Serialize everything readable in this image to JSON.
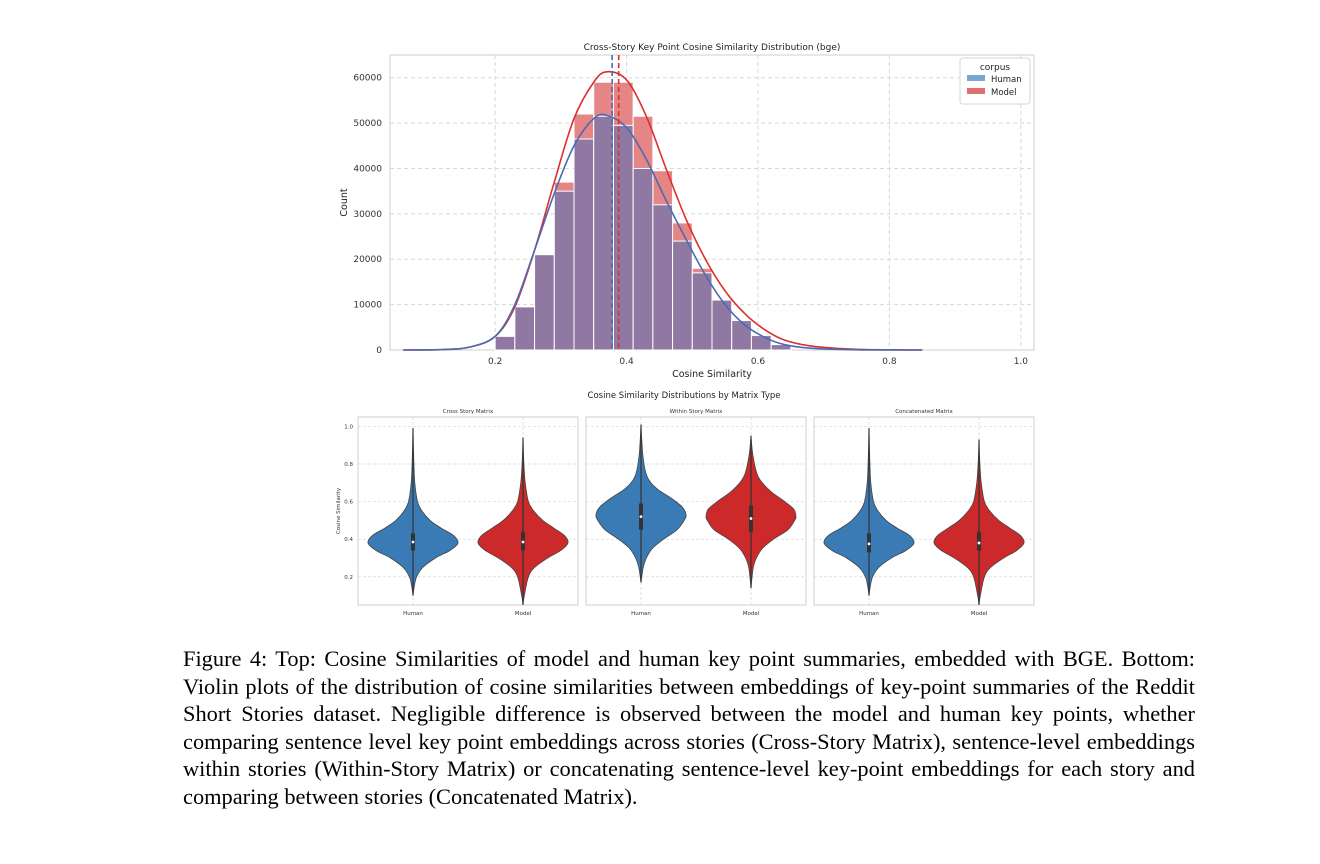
{
  "chart_data": [
    {
      "type": "histogram",
      "title": "Cross-Story Key Point Cosine Similarity Distribution (bge)",
      "xlabel": "Cosine Similarity",
      "ylabel": "Count",
      "xlim": [
        0.04,
        1.02
      ],
      "ylim": [
        0,
        65000
      ],
      "xticks": [
        "0.2",
        "0.4",
        "0.6",
        "0.8",
        "1.0"
      ],
      "xtick_values": [
        0.2,
        0.4,
        0.6,
        0.8,
        1.0
      ],
      "yticks": [
        "0",
        "10000",
        "20000",
        "30000",
        "40000",
        "50000",
        "60000"
      ],
      "ytick_values": [
        0,
        10000,
        20000,
        30000,
        40000,
        50000,
        60000
      ],
      "grid": true,
      "legend": {
        "title": "corpus",
        "position": "top-right",
        "entries": [
          "Human",
          "Model"
        ]
      },
      "bin_edges": [
        0.2,
        0.23,
        0.26,
        0.29,
        0.32,
        0.35,
        0.38,
        0.41,
        0.44,
        0.47,
        0.5,
        0.53,
        0.56,
        0.59,
        0.62,
        0.65
      ],
      "series": [
        {
          "name": "Human",
          "color": "#8a78a4",
          "kde_color": "#4b6bb0",
          "mean": 0.378,
          "values": [
            3000,
            9500,
            21000,
            35000,
            46500,
            51500,
            49500,
            40000,
            32000,
            24000,
            17000,
            11000,
            6500,
            3200,
            1200
          ],
          "kde": [
            [
              0.06,
              0
            ],
            [
              0.12,
              100
            ],
            [
              0.16,
              600
            ],
            [
              0.2,
              3000
            ],
            [
              0.23,
              10000
            ],
            [
              0.26,
              22000
            ],
            [
              0.29,
              34500
            ],
            [
              0.32,
              45000
            ],
            [
              0.35,
              51000
            ],
            [
              0.37,
              51700
            ],
            [
              0.4,
              49000
            ],
            [
              0.43,
              42000
            ],
            [
              0.46,
              33000
            ],
            [
              0.49,
              24500
            ],
            [
              0.52,
              16500
            ],
            [
              0.55,
              10000
            ],
            [
              0.58,
              5500
            ],
            [
              0.61,
              2800
            ],
            [
              0.64,
              1200
            ],
            [
              0.68,
              400
            ],
            [
              0.75,
              50
            ],
            [
              0.85,
              0
            ]
          ]
        },
        {
          "name": "Model",
          "color": "#e07070",
          "kde_color": "#d93030",
          "mean": 0.388,
          "values": [
            3000,
            9500,
            21000,
            37000,
            52000,
            59000,
            59000,
            51500,
            39500,
            28000,
            18000,
            11000,
            6000,
            2800,
            1000
          ],
          "kde": [
            [
              0.06,
              0
            ],
            [
              0.12,
              100
            ],
            [
              0.16,
              600
            ],
            [
              0.2,
              3000
            ],
            [
              0.23,
              9500
            ],
            [
              0.26,
              22000
            ],
            [
              0.29,
              37000
            ],
            [
              0.32,
              51000
            ],
            [
              0.35,
              59000
            ],
            [
              0.37,
              61300
            ],
            [
              0.4,
              59500
            ],
            [
              0.43,
              51500
            ],
            [
              0.46,
              40000
            ],
            [
              0.49,
              29000
            ],
            [
              0.52,
              20000
            ],
            [
              0.55,
              13000
            ],
            [
              0.58,
              8000
            ],
            [
              0.61,
              4500
            ],
            [
              0.64,
              2200
            ],
            [
              0.68,
              900
            ],
            [
              0.75,
              150
            ],
            [
              0.85,
              0
            ]
          ]
        }
      ]
    },
    {
      "type": "violin",
      "suptitle": "Cosine Similarity Distributions by Matrix Type",
      "ylabel": "Cosine Similarity",
      "ylim": [
        0.05,
        1.05
      ],
      "yticks": [
        "0.2",
        "0.4",
        "0.6",
        "0.8",
        "1.0"
      ],
      "ytick_values": [
        0.2,
        0.4,
        0.6,
        0.8,
        1.0
      ],
      "categories": [
        "Human",
        "Model"
      ],
      "colors": [
        "#3a7ab5",
        "#cc2a2a"
      ],
      "panels": [
        {
          "title": "Cross Story Matrix",
          "violins": [
            {
              "category": "Human",
              "min": 0.1,
              "max": 0.99,
              "median": 0.385,
              "q1": 0.34,
              "q3": 0.43,
              "profile": [
                [
                  0.1,
                  0
                ],
                [
                  0.15,
                  0.03
                ],
                [
                  0.2,
                  0.08
                ],
                [
                  0.25,
                  0.22
                ],
                [
                  0.3,
                  0.5
                ],
                [
                  0.34,
                  0.82
                ],
                [
                  0.38,
                  1.0
                ],
                [
                  0.42,
                  0.9
                ],
                [
                  0.46,
                  0.62
                ],
                [
                  0.5,
                  0.38
                ],
                [
                  0.55,
                  0.2
                ],
                [
                  0.6,
                  0.1
                ],
                [
                  0.7,
                  0.04
                ],
                [
                  0.8,
                  0.02
                ],
                [
                  0.99,
                  0
                ]
              ]
            },
            {
              "category": "Model",
              "min": 0.05,
              "max": 0.94,
              "median": 0.385,
              "q1": 0.34,
              "q3": 0.44,
              "profile": [
                [
                  0.05,
                  0
                ],
                [
                  0.1,
                  0.03
                ],
                [
                  0.2,
                  0.12
                ],
                [
                  0.25,
                  0.26
                ],
                [
                  0.3,
                  0.55
                ],
                [
                  0.34,
                  0.84
                ],
                [
                  0.38,
                  1.0
                ],
                [
                  0.42,
                  0.92
                ],
                [
                  0.46,
                  0.68
                ],
                [
                  0.5,
                  0.44
                ],
                [
                  0.55,
                  0.24
                ],
                [
                  0.6,
                  0.12
                ],
                [
                  0.7,
                  0.05
                ],
                [
                  0.8,
                  0.02
                ],
                [
                  0.94,
                  0
                ]
              ]
            }
          ]
        },
        {
          "title": "Within Story Matrix",
          "violins": [
            {
              "category": "Human",
              "min": 0.17,
              "max": 1.01,
              "median": 0.52,
              "q1": 0.45,
              "q3": 0.59,
              "profile": [
                [
                  0.17,
                  0
                ],
                [
                  0.25,
                  0.05
                ],
                [
                  0.3,
                  0.12
                ],
                [
                  0.35,
                  0.25
                ],
                [
                  0.4,
                  0.5
                ],
                [
                  0.45,
                  0.8
                ],
                [
                  0.5,
                  0.96
                ],
                [
                  0.53,
                  1.0
                ],
                [
                  0.57,
                  0.92
                ],
                [
                  0.62,
                  0.66
                ],
                [
                  0.66,
                  0.4
                ],
                [
                  0.7,
                  0.22
                ],
                [
                  0.75,
                  0.11
                ],
                [
                  0.85,
                  0.04
                ],
                [
                  1.01,
                  0
                ]
              ]
            },
            {
              "category": "Model",
              "min": 0.14,
              "max": 0.95,
              "median": 0.51,
              "q1": 0.44,
              "q3": 0.58,
              "profile": [
                [
                  0.14,
                  0
                ],
                [
                  0.25,
                  0.05
                ],
                [
                  0.3,
                  0.12
                ],
                [
                  0.35,
                  0.25
                ],
                [
                  0.4,
                  0.5
                ],
                [
                  0.45,
                  0.82
                ],
                [
                  0.5,
                  0.97
                ],
                [
                  0.52,
                  1.0
                ],
                [
                  0.56,
                  0.95
                ],
                [
                  0.6,
                  0.75
                ],
                [
                  0.65,
                  0.46
                ],
                [
                  0.7,
                  0.25
                ],
                [
                  0.75,
                  0.13
                ],
                [
                  0.85,
                  0.04
                ],
                [
                  0.95,
                  0
                ]
              ]
            }
          ]
        },
        {
          "title": "Concatenated Matrix",
          "violins": [
            {
              "category": "Human",
              "min": 0.1,
              "max": 0.99,
              "median": 0.375,
              "q1": 0.33,
              "q3": 0.43,
              "profile": [
                [
                  0.1,
                  0
                ],
                [
                  0.15,
                  0.03
                ],
                [
                  0.2,
                  0.08
                ],
                [
                  0.25,
                  0.22
                ],
                [
                  0.3,
                  0.5
                ],
                [
                  0.34,
                  0.82
                ],
                [
                  0.38,
                  1.0
                ],
                [
                  0.42,
                  0.9
                ],
                [
                  0.46,
                  0.62
                ],
                [
                  0.5,
                  0.38
                ],
                [
                  0.55,
                  0.2
                ],
                [
                  0.6,
                  0.1
                ],
                [
                  0.7,
                  0.04
                ],
                [
                  0.8,
                  0.02
                ],
                [
                  0.99,
                  0
                ]
              ]
            },
            {
              "category": "Model",
              "min": 0.05,
              "max": 0.93,
              "median": 0.38,
              "q1": 0.34,
              "q3": 0.44,
              "profile": [
                [
                  0.05,
                  0
                ],
                [
                  0.1,
                  0.03
                ],
                [
                  0.2,
                  0.12
                ],
                [
                  0.25,
                  0.26
                ],
                [
                  0.3,
                  0.55
                ],
                [
                  0.34,
                  0.84
                ],
                [
                  0.38,
                  1.0
                ],
                [
                  0.42,
                  0.92
                ],
                [
                  0.46,
                  0.68
                ],
                [
                  0.5,
                  0.44
                ],
                [
                  0.55,
                  0.24
                ],
                [
                  0.6,
                  0.12
                ],
                [
                  0.7,
                  0.05
                ],
                [
                  0.8,
                  0.02
                ],
                [
                  0.93,
                  0
                ]
              ]
            }
          ]
        }
      ]
    }
  ],
  "caption": "Figure 4: Top: Cosine Similarities of model and human key point summaries, embedded with BGE. Bottom: Violin plots of the distribution of cosine similarities between embeddings of key-point summaries of the Reddit Short Stories dataset. Negligible difference is observed between the model and human key points, whether comparing sentence level key point embeddings across stories (Cross-Story Matrix), sentence-level embeddings within stories (Within-Story Matrix) or concatenating sentence-level key-point embeddings for each story and comparing between stories (Concatenated Matrix)."
}
